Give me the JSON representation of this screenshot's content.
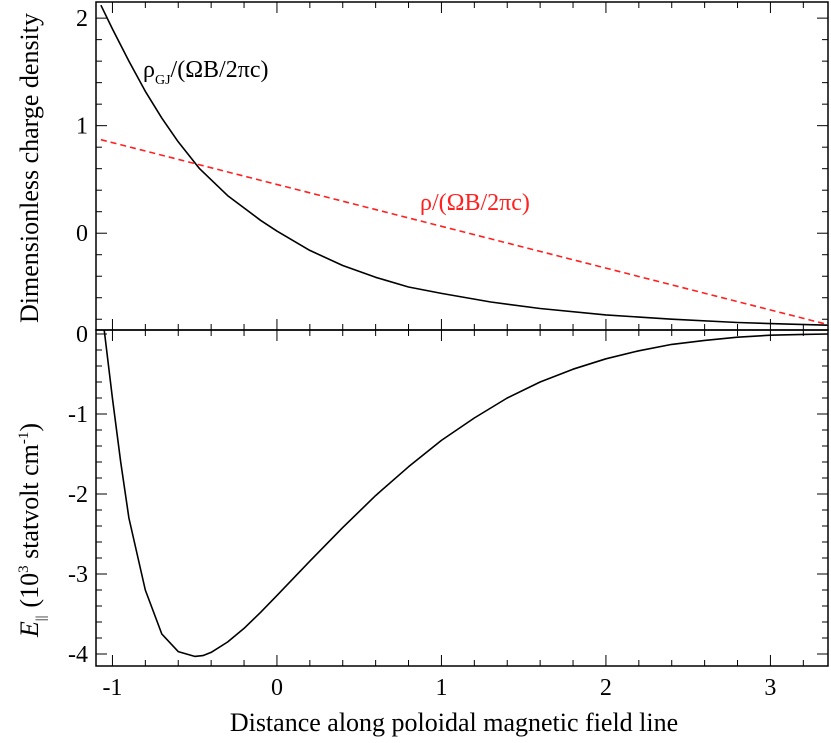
{
  "chart_data": [
    {
      "type": "line",
      "panel": "top",
      "ylabel": "Dimensionless charge density",
      "xlim": [
        -1.1,
        3.35
      ],
      "ylim": [
        -0.9,
        2.15
      ],
      "x_ticks": [
        "-1",
        "0",
        "1",
        "2",
        "3"
      ],
      "y_ticks": [
        {
          "value": 2,
          "label": "2"
        },
        {
          "value": 1,
          "label": "1"
        },
        {
          "value": 0,
          "label": "0"
        }
      ],
      "series": [
        {
          "name": "rho_GJ",
          "label_main": "ρ",
          "label_sub": "GJ",
          "label_rest": "/(ΩB/2πc)",
          "color": "#000000",
          "dash": false,
          "x": [
            -1.07,
            -1.0,
            -0.9,
            -0.8,
            -0.7,
            -0.6,
            -0.47,
            -0.3,
            -0.1,
            0.0,
            0.2,
            0.4,
            0.6,
            0.8,
            1.0,
            1.3,
            1.6,
            2.0,
            2.4,
            2.8,
            3.1,
            3.35
          ],
          "y": [
            2.12,
            1.9,
            1.6,
            1.32,
            1.07,
            0.85,
            0.6,
            0.35,
            0.12,
            0.02,
            -0.16,
            -0.3,
            -0.41,
            -0.5,
            -0.56,
            -0.64,
            -0.7,
            -0.76,
            -0.8,
            -0.83,
            -0.845,
            -0.855
          ]
        },
        {
          "name": "rho",
          "label": "ρ/(ΩB/2πc)",
          "color": "#ff2020",
          "dash": true,
          "x": [
            -1.07,
            3.35
          ],
          "y": [
            0.87,
            -0.85
          ]
        }
      ]
    },
    {
      "type": "line",
      "panel": "bottom",
      "xlabel": "Distance along poloidal magnetic field line",
      "ylabel_main": "E",
      "ylabel_sub": "||",
      "ylabel_paren_open": "(10",
      "ylabel_sup1": "3",
      "ylabel_mid": " statvolt cm",
      "ylabel_sup2": "-1",
      "ylabel_paren_close": ")",
      "xlim": [
        -1.1,
        3.35
      ],
      "ylim": [
        -4.15,
        0.05
      ],
      "x_ticks": [
        {
          "value": -1,
          "label": "-1"
        },
        {
          "value": 0,
          "label": "0"
        },
        {
          "value": 1,
          "label": "1"
        },
        {
          "value": 2,
          "label": "2"
        },
        {
          "value": 3,
          "label": "3"
        }
      ],
      "y_ticks": [
        {
          "value": 0,
          "label": "0"
        },
        {
          "value": -1,
          "label": "-1"
        },
        {
          "value": -2,
          "label": "-2"
        },
        {
          "value": -3,
          "label": "-3"
        },
        {
          "value": -4,
          "label": "-4"
        }
      ],
      "series": [
        {
          "name": "E_parallel",
          "color": "#000000",
          "dash": false,
          "x": [
            -1.05,
            -1.0,
            -0.95,
            -0.9,
            -0.8,
            -0.7,
            -0.6,
            -0.5,
            -0.45,
            -0.4,
            -0.3,
            -0.2,
            -0.1,
            0.0,
            0.2,
            0.4,
            0.6,
            0.8,
            1.0,
            1.2,
            1.4,
            1.6,
            1.8,
            2.0,
            2.2,
            2.4,
            2.6,
            2.8,
            3.0,
            3.2,
            3.35
          ],
          "y": [
            0.05,
            -0.8,
            -1.6,
            -2.3,
            -3.2,
            -3.75,
            -3.97,
            -4.03,
            -4.02,
            -3.98,
            -3.85,
            -3.68,
            -3.48,
            -3.27,
            -2.84,
            -2.42,
            -2.02,
            -1.66,
            -1.33,
            -1.05,
            -0.8,
            -0.6,
            -0.44,
            -0.31,
            -0.21,
            -0.13,
            -0.08,
            -0.04,
            -0.015,
            -0.005,
            0.0
          ]
        }
      ]
    }
  ]
}
